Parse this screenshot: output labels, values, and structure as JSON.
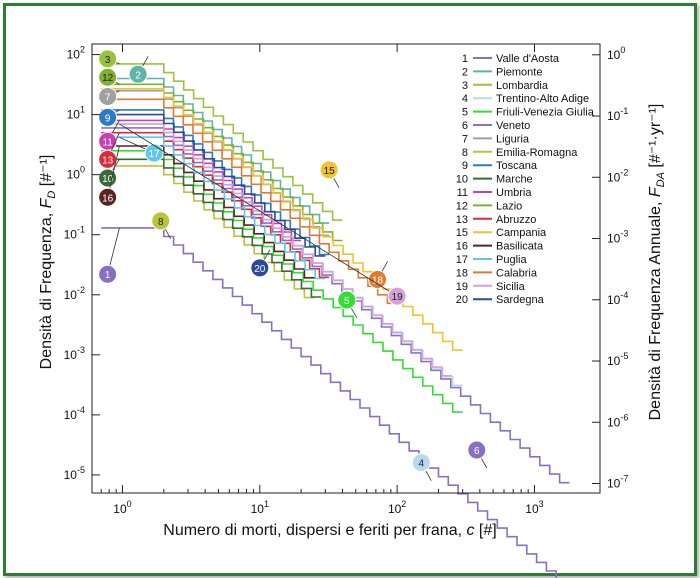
{
  "chart_data": {
    "type": "line",
    "xlabel": "Numero di morti, dispersi e feriti per frana, c [#]",
    "ylabel": "Densità di Frequenza, F_D [#^-1]",
    "ylabel_right": "Densità di Frequenza Annuale, F_DA [#^-1·yr^-1]",
    "x_scale": "log",
    "y_scale": "log",
    "xlim": [
      0.6,
      3000
    ],
    "ylim": [
      5e-06,
      150
    ],
    "ylim_right": [
      7e-08,
      1.5
    ],
    "x_ticks": [
      {
        "value": 1,
        "label": "10^0"
      },
      {
        "value": 10,
        "label": "10^1"
      },
      {
        "value": 100,
        "label": "10^2"
      },
      {
        "value": 1000,
        "label": "10^3"
      }
    ],
    "y_ticks": [
      {
        "value": 100,
        "label": "10^2"
      },
      {
        "value": 10,
        "label": "10^1"
      },
      {
        "value": 1,
        "label": "10^0"
      },
      {
        "value": 0.1,
        "label": "10^-1"
      },
      {
        "value": 0.01,
        "label": "10^-2"
      },
      {
        "value": 0.001,
        "label": "10^-3"
      },
      {
        "value": 0.0001,
        "label": "10^-4"
      },
      {
        "value": 1e-05,
        "label": "10^-5"
      }
    ],
    "y_ticks_right": [
      {
        "value": 1,
        "label": "10^0"
      },
      {
        "value": 0.1,
        "label": "10^-1"
      },
      {
        "value": 0.01,
        "label": "10^-2"
      },
      {
        "value": 0.001,
        "label": "10^-3"
      },
      {
        "value": 0.0001,
        "label": "10^-4"
      },
      {
        "value": 1e-05,
        "label": "10^-5"
      },
      {
        "value": 1e-06,
        "label": "10^-6"
      },
      {
        "value": 1e-07,
        "label": "10^-7"
      }
    ],
    "legend_position": "top-right",
    "series": [
      {
        "id": 1,
        "name": "Valle d'Aosta",
        "color": "#8a6fc0",
        "y0": 0.13,
        "x1": 2,
        "x2": 2000,
        "slope": -2.0,
        "callout": [
          0.78,
          0.022
        ],
        "dir": "left"
      },
      {
        "id": 2,
        "name": "Piemonte",
        "color": "#5fb3a8",
        "y0": 40,
        "x1": 2,
        "x2": 32,
        "slope": -2.0,
        "callout": [
          1.3,
          47
        ],
        "dir": "up"
      },
      {
        "id": 3,
        "name": "Lombardia",
        "color": "#98c43c",
        "y0": 70,
        "x1": 2,
        "x2": 40,
        "slope": -2.0,
        "callout": [
          0.78,
          85
        ],
        "dir": "left"
      },
      {
        "id": 4,
        "name": "Trentino-Alto Adige",
        "color": "#b8daf0",
        "y0": 7,
        "x1": 2,
        "x2": 300,
        "slope": -2.0,
        "callout": [
          150,
          1.6e-05
        ],
        "dir": "down"
      },
      {
        "id": 5,
        "name": "Friuli-Venezia Giulia",
        "color": "#33dd33",
        "y0": 2.5,
        "x1": 2,
        "x2": 300,
        "slope": -2.0,
        "callout": [
          43,
          0.0082
        ],
        "dir": "down"
      },
      {
        "id": 6,
        "name": "Veneto",
        "color": "#8a70c2",
        "y0": 6,
        "x1": 2,
        "x2": 1800,
        "slope": -2.0,
        "callout": [
          380,
          2.6e-05
        ],
        "dir": "down"
      },
      {
        "id": 7,
        "name": "Liguria",
        "color": "#a0a0a0",
        "y0": 25,
        "x1": 2,
        "x2": 32,
        "slope": -2.0,
        "callout": [
          0.78,
          20
        ],
        "dir": "left"
      },
      {
        "id": 8,
        "name": "Emilia-Romagna",
        "color": "#b8c43a",
        "y0": 1.4,
        "x1": 2,
        "x2": 25,
        "slope": -2.0,
        "callout": [
          1.9,
          0.17
        ],
        "dir": "down"
      },
      {
        "id": 9,
        "name": "Toscana",
        "color": "#2e78c8",
        "y0": 12,
        "x1": 2,
        "x2": 32,
        "slope": -2.0,
        "callout": [
          0.78,
          9
        ],
        "dir": "left"
      },
      {
        "id": 10,
        "name": "Marche",
        "color": "#3a6a3a",
        "y0": 1.8,
        "x1": 2,
        "x2": 28,
        "slope": -2.0,
        "callout": [
          0.78,
          0.88
        ],
        "dir": "left"
      },
      {
        "id": 11,
        "name": "Umbria",
        "color": "#cc3fb3",
        "y0": 8,
        "x1": 2,
        "x2": 20,
        "slope": -2.0,
        "callout": [
          0.78,
          3.6
        ],
        "dir": "left"
      },
      {
        "id": 12,
        "name": "Lazio",
        "color": "#80b030",
        "y0": 32,
        "x1": 2,
        "x2": 40,
        "slope": -2.0,
        "callout": [
          0.78,
          42
        ],
        "dir": "left"
      },
      {
        "id": 13,
        "name": "Abruzzo",
        "color": "#dd2a3a",
        "y0": 5,
        "x1": 2,
        "x2": 32,
        "slope": -2.0,
        "callout": [
          0.78,
          1.8
        ],
        "dir": "left"
      },
      {
        "id": 15,
        "name": "Campania",
        "color": "#f1c232",
        "y0": 27,
        "x1": 2,
        "x2": 300,
        "slope": -2.0,
        "callout": [
          32,
          1.2
        ],
        "dir": "down"
      },
      {
        "id": 16,
        "name": "Basilicata",
        "color": "#5a2222",
        "y0": 3,
        "x1": 2,
        "x2": 25,
        "slope": -2.0,
        "callout": [
          0.78,
          0.42
        ],
        "dir": "left"
      },
      {
        "id": 17,
        "name": "Puglia",
        "color": "#5ec8ea",
        "y0": 4.2,
        "x1": 2,
        "x2": 30,
        "slope": -2.0,
        "callout": [
          1.7,
          2.3
        ],
        "dir": "left"
      },
      {
        "id": 18,
        "name": "Calabria",
        "color": "#e07a30",
        "y0": 18,
        "x1": 2,
        "x2": 100,
        "slope": -2.0,
        "callout": [
          72,
          0.018
        ],
        "dir": "up"
      },
      {
        "id": 19,
        "name": "Sicilia",
        "color": "#d8a0d8",
        "y0": 7,
        "x1": 2,
        "x2": 250,
        "slope": -2.0,
        "callout": [
          100,
          0.0095
        ],
        "dir": "left"
      },
      {
        "id": 20,
        "name": "Sardegna",
        "color": "#2a4a9a",
        "y0": 10,
        "x1": 2,
        "x2": 30,
        "slope": -2.0,
        "callout": [
          10,
          0.028
        ],
        "dir": "up"
      }
    ],
    "legend": [
      {
        "num": "1",
        "name": "Valle d'Aosta",
        "color": "#8a6fc0"
      },
      {
        "num": "2",
        "name": "Piemonte",
        "color": "#5fb3a8"
      },
      {
        "num": "3",
        "name": "Lombardia",
        "color": "#98c43c"
      },
      {
        "num": "4",
        "name": "Trentino-Alto Adige",
        "color": "#b8daf0"
      },
      {
        "num": "5",
        "name": "Friuli-Venezia Giulia",
        "color": "#33dd33"
      },
      {
        "num": "6",
        "name": "Veneto",
        "color": "#8a70c2"
      },
      {
        "num": "7",
        "name": "Liguria",
        "color": "#a0a0a0"
      },
      {
        "num": "8",
        "name": "Emilia-Romagna",
        "color": "#b8c43a"
      },
      {
        "num": "9",
        "name": "Toscana",
        "color": "#2e78c8"
      },
      {
        "num": "10",
        "name": "Marche",
        "color": "#3a6a3a"
      },
      {
        "num": "11",
        "name": "Umbria",
        "color": "#cc3fb3"
      },
      {
        "num": "12",
        "name": "Lazio",
        "color": "#80b030"
      },
      {
        "num": "13",
        "name": "Abruzzo",
        "color": "#dd2a3a"
      },
      {
        "num": "15",
        "name": "Campania",
        "color": "#f1c232"
      },
      {
        "num": "16",
        "name": "Basilicata",
        "color": "#5a2222"
      },
      {
        "num": "17",
        "name": "Puglia",
        "color": "#5ec8ea"
      },
      {
        "num": "18",
        "name": "Calabria",
        "color": "#e07a30"
      },
      {
        "num": "19",
        "name": "Sicilia",
        "color": "#d8a0d8"
      },
      {
        "num": "20",
        "name": "Sardegna",
        "color": "#2a4a9a"
      }
    ]
  }
}
